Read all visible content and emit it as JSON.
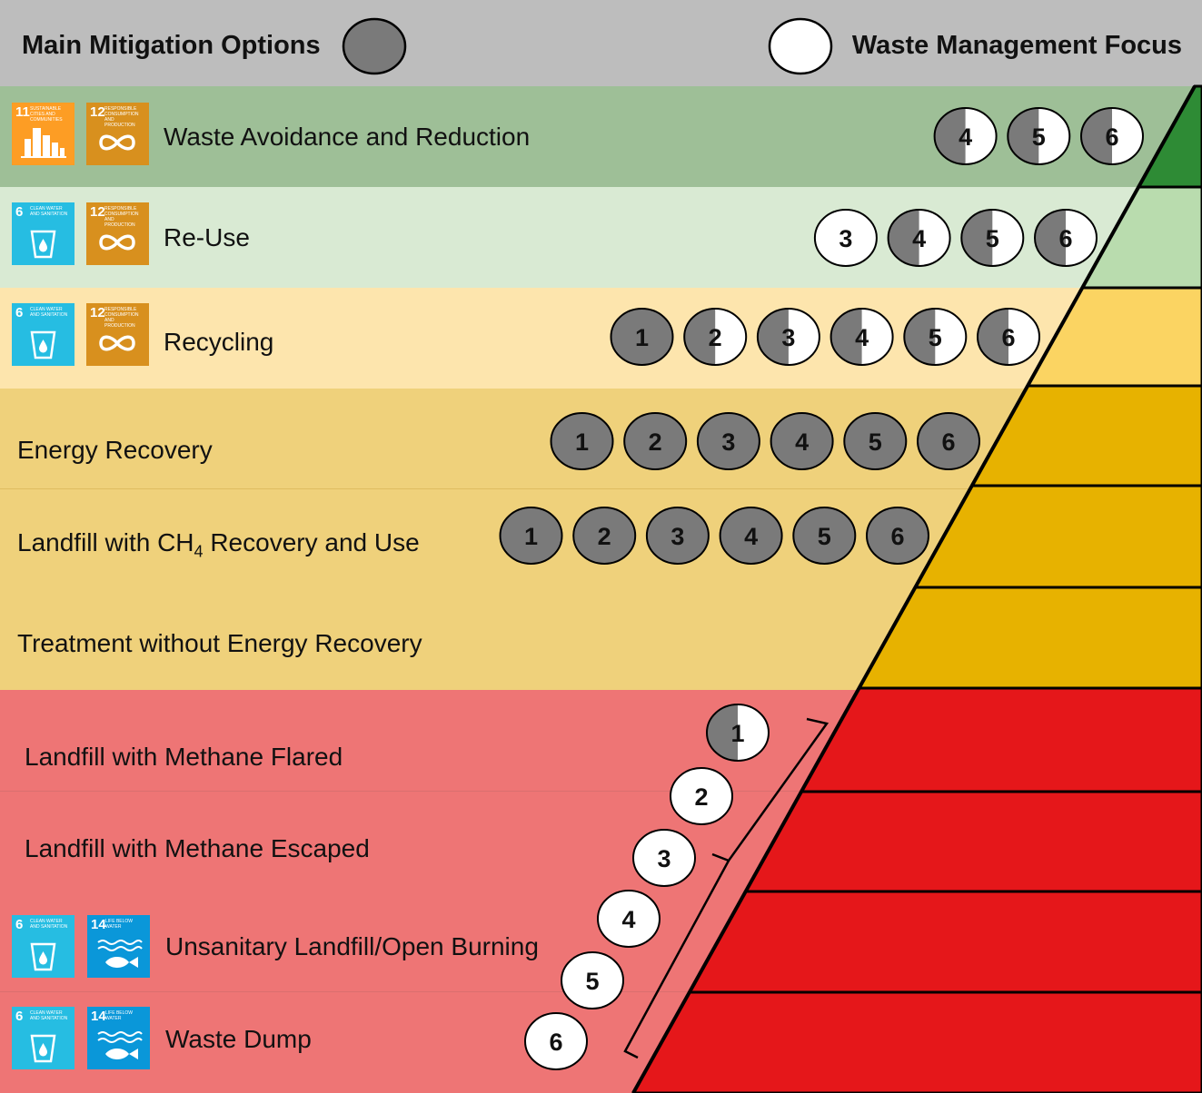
{
  "header": {
    "left_title": "Main Mitigation Options",
    "right_title": "Waste Management Focus"
  },
  "colors": {
    "header_bg": "#bdbdbd",
    "dark_gray": "#7a7a7a",
    "band_avoidance": "#9ebf97",
    "band_reuse": "#d9ead3",
    "band_recycling": "#fde5ad",
    "band_mid": "#efd17b",
    "band_red": "#ee7575",
    "pyr_green_dark": "#2e8b35",
    "pyr_green_light": "#b9dcae",
    "pyr_yellow": "#fbd462",
    "pyr_gold": "#e7b200",
    "pyr_red": "#e5171a",
    "sdg_6": "#26bde2",
    "sdg_11": "#fd9d24",
    "sdg_12": "#d8901e",
    "sdg_14": "#0a97d9"
  },
  "rows": [
    {
      "label": "Waste Avoidance and Reduction",
      "sdgs": [
        "11",
        "12"
      ]
    },
    {
      "label": "Re-Use",
      "sdgs": [
        "6",
        "12"
      ]
    },
    {
      "label": "Recycling",
      "sdgs": [
        "6",
        "12"
      ]
    },
    {
      "label": "Energy Recovery",
      "sdgs": []
    },
    {
      "label_prefix": "Landfill with CH",
      "label_sub": "4",
      "label_suffix": " Recovery and Use",
      "sdgs": []
    },
    {
      "label": "Treatment without Energy Recovery",
      "sdgs": []
    },
    {
      "label": "Landfill with Methane Flared",
      "sdgs": []
    },
    {
      "label": "Landfill with Methane Escaped",
      "sdgs": []
    },
    {
      "label": "Unsanitary Landfill/Open Burning",
      "sdgs": [
        "6",
        "14"
      ]
    },
    {
      "label": "Waste Dump",
      "sdgs": [
        "6",
        "14"
      ]
    }
  ],
  "sdg_icons": {
    "6": {
      "number": "6",
      "title": "CLEAN WATER AND SANITATION",
      "icon": "water-glass-icon"
    },
    "11": {
      "number": "11",
      "title": "SUSTAINABLE CITIES AND COMMUNITIES",
      "icon": "city-buildings-icon"
    },
    "12": {
      "number": "12",
      "title": "RESPONSIBLE CONSUMPTION AND PRODUCTION",
      "icon": "infinity-loop-icon"
    },
    "14": {
      "number": "14",
      "title": "LIFE BELOW WATER",
      "icon": "fish-waves-icon"
    }
  },
  "circles": [
    {
      "row": 0,
      "items": [
        {
          "n": "4",
          "fill": "half"
        },
        {
          "n": "5",
          "fill": "half"
        },
        {
          "n": "6",
          "fill": "half"
        }
      ]
    },
    {
      "row": 1,
      "items": [
        {
          "n": "3",
          "fill": "white"
        },
        {
          "n": "4",
          "fill": "half"
        },
        {
          "n": "5",
          "fill": "half"
        },
        {
          "n": "6",
          "fill": "half"
        }
      ]
    },
    {
      "row": 2,
      "items": [
        {
          "n": "1",
          "fill": "gray"
        },
        {
          "n": "2",
          "fill": "half"
        },
        {
          "n": "3",
          "fill": "half"
        },
        {
          "n": "4",
          "fill": "half"
        },
        {
          "n": "5",
          "fill": "half"
        },
        {
          "n": "6",
          "fill": "half"
        }
      ]
    },
    {
      "row": 3,
      "items": [
        {
          "n": "1",
          "fill": "gray"
        },
        {
          "n": "2",
          "fill": "gray"
        },
        {
          "n": "3",
          "fill": "gray"
        },
        {
          "n": "4",
          "fill": "gray"
        },
        {
          "n": "5",
          "fill": "gray"
        },
        {
          "n": "6",
          "fill": "gray"
        }
      ]
    },
    {
      "row": 4,
      "items": [
        {
          "n": "1",
          "fill": "gray"
        },
        {
          "n": "2",
          "fill": "gray"
        },
        {
          "n": "3",
          "fill": "gray"
        },
        {
          "n": "4",
          "fill": "gray"
        },
        {
          "n": "5",
          "fill": "gray"
        },
        {
          "n": "6",
          "fill": "gray"
        }
      ]
    }
  ],
  "diagonal_circles": [
    {
      "n": "1",
      "fill": "half"
    },
    {
      "n": "2",
      "fill": "white"
    },
    {
      "n": "3",
      "fill": "white"
    },
    {
      "n": "4",
      "fill": "white"
    },
    {
      "n": "5",
      "fill": "white"
    },
    {
      "n": "6",
      "fill": "white"
    }
  ]
}
